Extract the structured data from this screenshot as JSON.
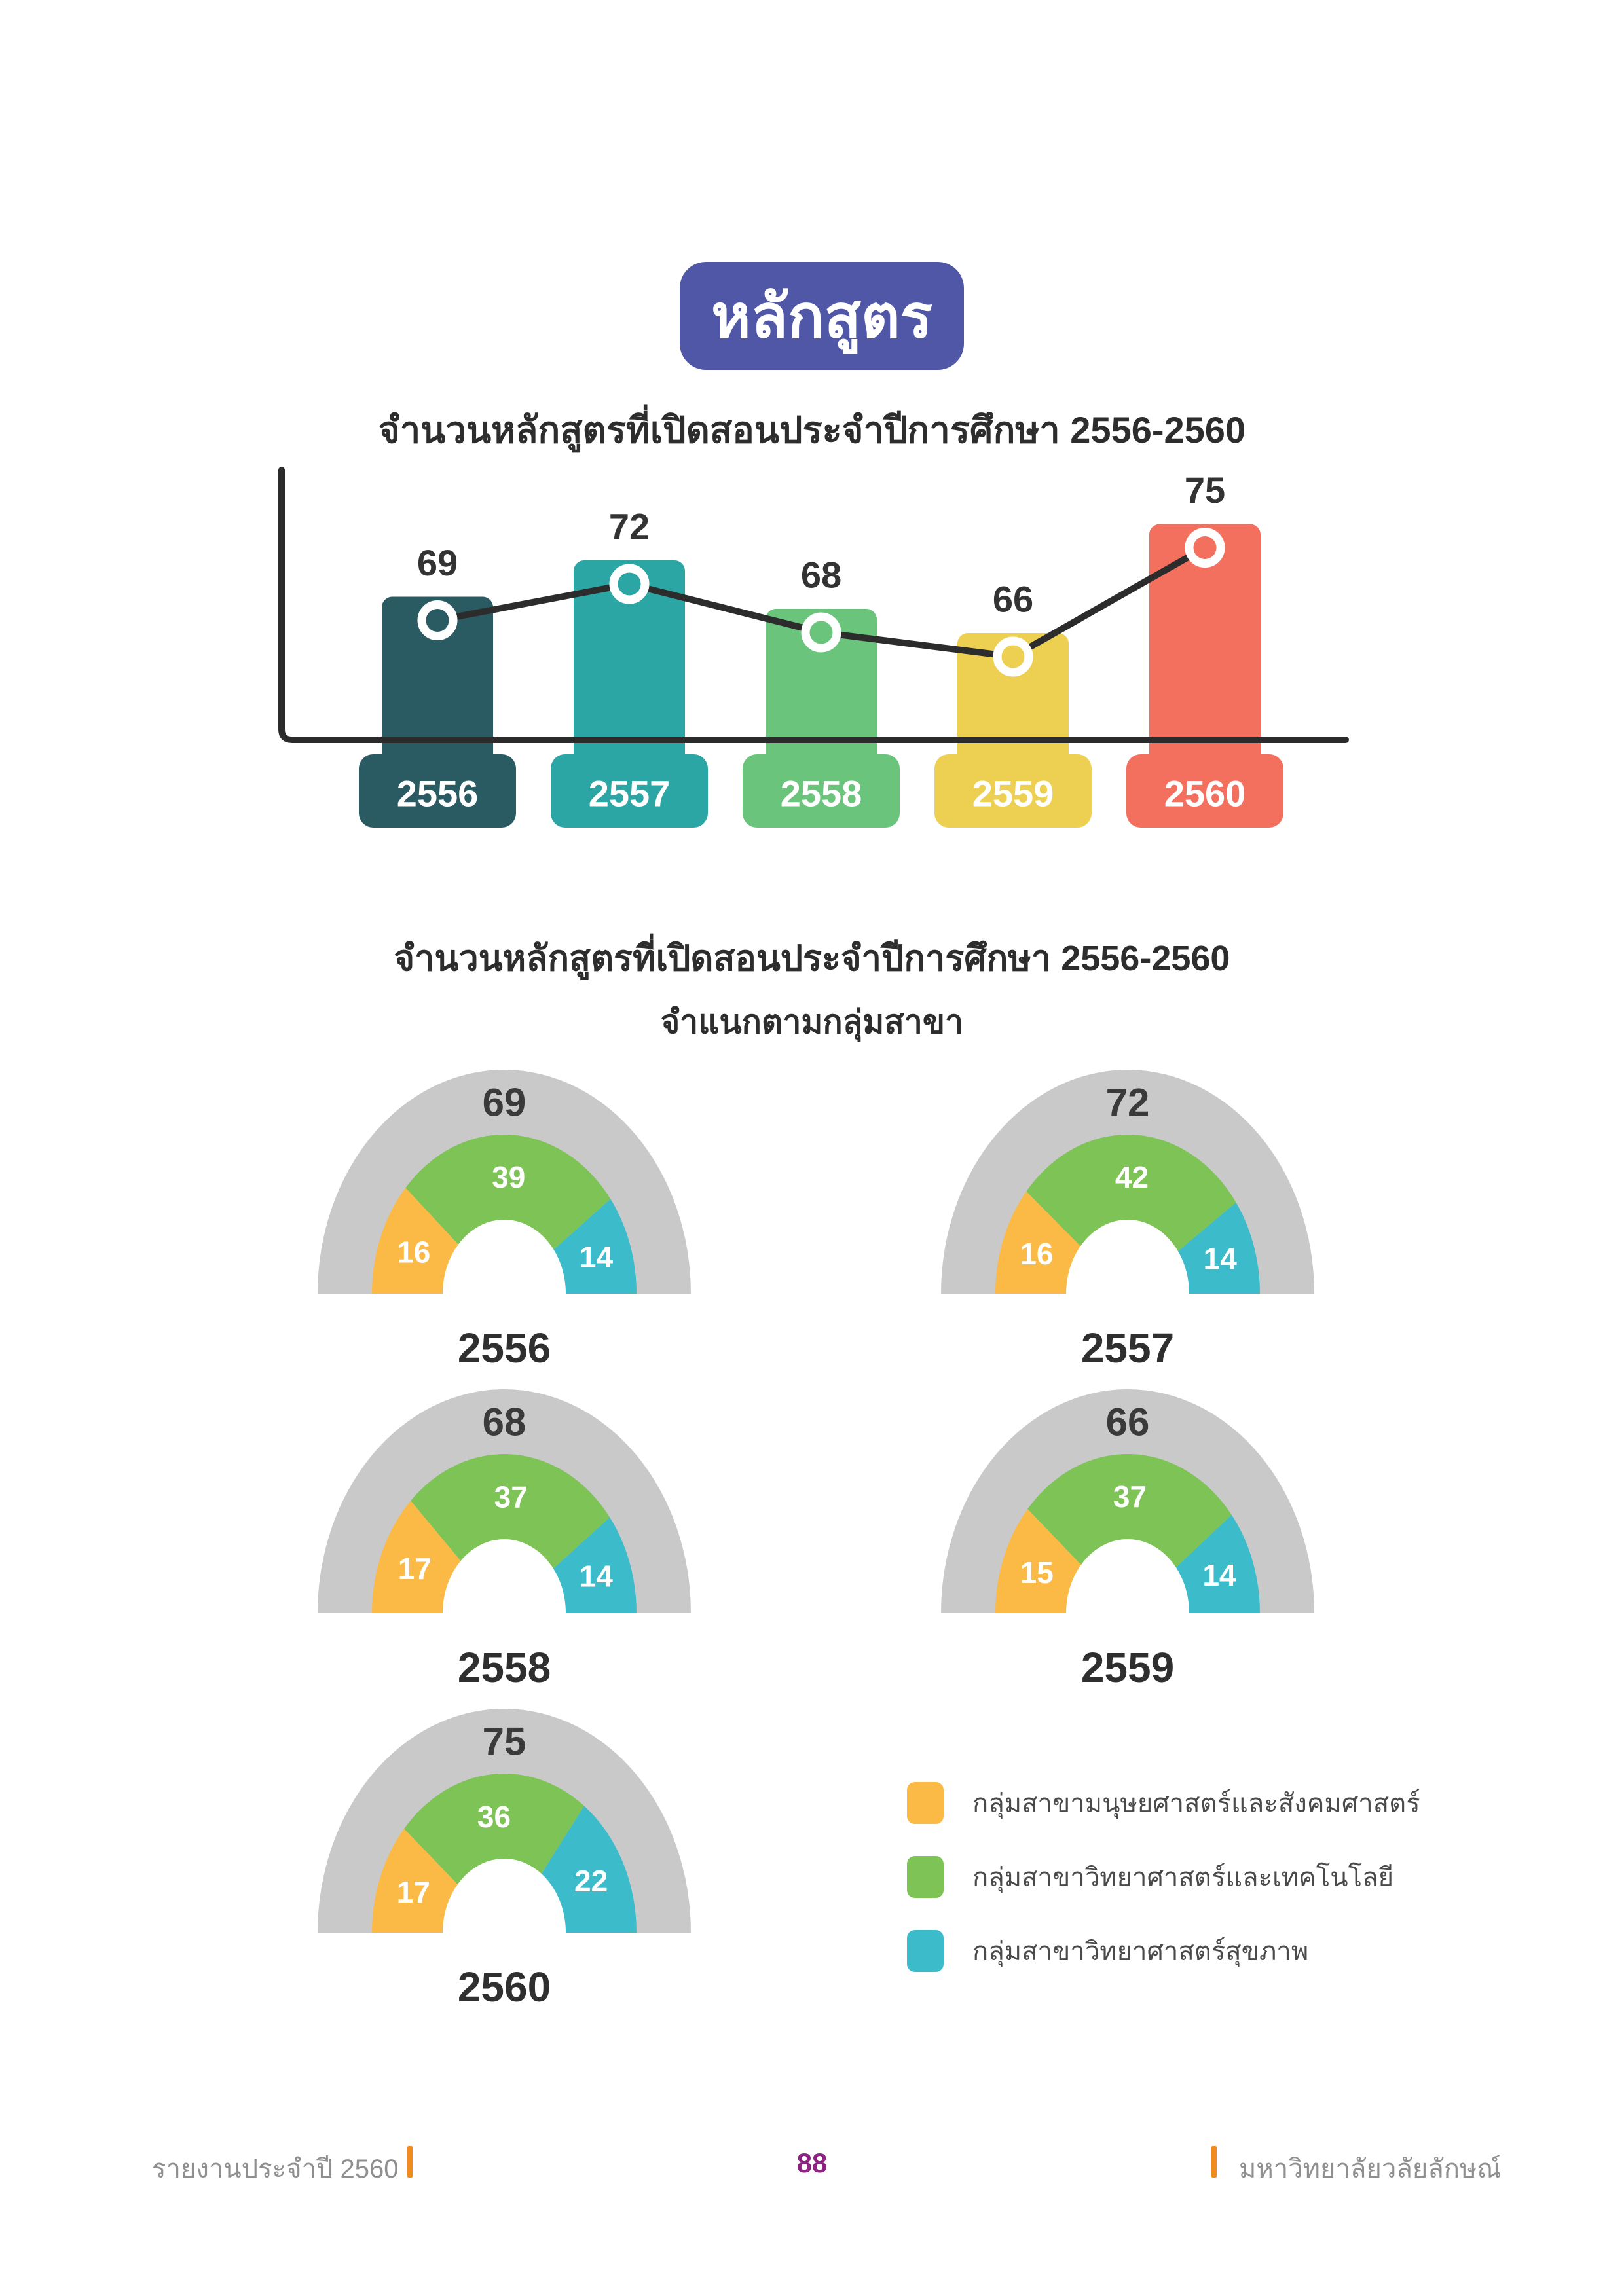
{
  "page": {
    "badge": "หลักสูตร",
    "badge_color": "#5057A6",
    "footer": {
      "left": "รายงานประจำปี  2560",
      "page_number": "88",
      "right": "มหาวิทยาลัยวลัยลักษณ์",
      "accent_color": "#F28C1E",
      "text_color": "#8F8F8F",
      "page_number_color": "#8E2383"
    }
  },
  "chart_data": [
    {
      "type": "bar",
      "title": "จำนวนหลักสูตรที่เปิดสอนประจำปีการศึกษา 2556-2560",
      "categories": [
        "2556",
        "2557",
        "2558",
        "2559",
        "2560"
      ],
      "values": [
        69,
        72,
        68,
        66,
        75
      ],
      "bar_colors": [
        "#2A5B63",
        "#2BA6A4",
        "#6AC47C",
        "#EDD052",
        "#F4705E"
      ],
      "overlay": "line-with-markers",
      "line_color": "#2C2C2C",
      "axis_color": "#2B2B2B",
      "value_label_color": "#333333",
      "grid": "off",
      "y_axis_labels": "none"
    },
    {
      "type": "gauge-donut",
      "title": "จำนวนหลักสูตรที่เปิดสอนประจำปีการศึกษา 2556-2560",
      "subtitle": "จำแนกตามกลุ่มสาขา",
      "series_names": [
        "กลุ่มสาขามนุษยศาสตร์และสังคมศาสตร์",
        "กลุ่มสาขาวิทยาศาสตร์และเทคโนโลยี",
        "กลุ่มสาขาวิทยาศาสตร์สุขภาพ"
      ],
      "series_colors": [
        "#FBB946",
        "#7DC355",
        "#3CBCCA"
      ],
      "track_color": "#C9C9C9",
      "total_label_color": "#3A3A3A",
      "year_label_color": "#2F2F2F",
      "segment_label_color": "#FFFFFF",
      "groups": [
        {
          "year": "2556",
          "total": 69,
          "values": [
            16,
            39,
            14
          ]
        },
        {
          "year": "2557",
          "total": 72,
          "values": [
            16,
            42,
            14
          ]
        },
        {
          "year": "2558",
          "total": 68,
          "values": [
            17,
            37,
            14
          ]
        },
        {
          "year": "2559",
          "total": 66,
          "values": [
            15,
            37,
            14
          ]
        },
        {
          "year": "2560",
          "total": 75,
          "values": [
            17,
            36,
            22
          ]
        }
      ],
      "legend_position": "bottom-right"
    }
  ],
  "legend": {
    "items": [
      {
        "label": "กลุ่มสาขามนุษยศาสตร์และสังคมศาสตร์",
        "color": "#FBB946"
      },
      {
        "label": "กลุ่มสาขาวิทยาศาสตร์และเทคโนโลยี",
        "color": "#7DC355"
      },
      {
        "label": "กลุ่มสาขาวิทยาศาสตร์สุขภาพ",
        "color": "#3CBCCA"
      }
    ]
  }
}
